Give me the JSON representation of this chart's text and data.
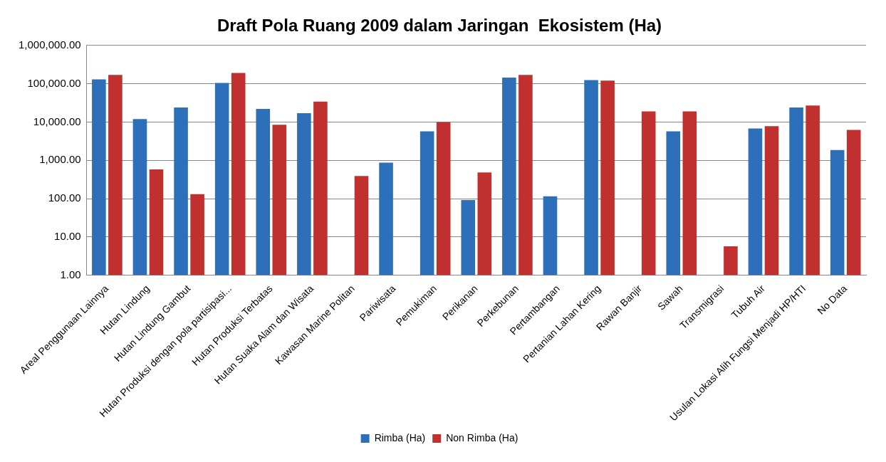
{
  "chart_data": {
    "type": "bar",
    "title": "Draft Pola Ruang 2009 dalam Jaringan  Ekosistem (Ha)",
    "categories": [
      "Areal Penggunaan Lainnya",
      "Hutan Lindung",
      "Hutan Lindung Gambut",
      "Hutan Produksi dengan pola partisipasi...",
      "Hutan Produksi Terbatas",
      "Hutan Suaka Alam dan Wisata",
      "Kawasan Marine Politan",
      "Pariwisata",
      "Pemukiman",
      "Perikanan",
      "Perkebunan",
      "Pertambangan",
      "Pertanian Lahan Kering",
      "Rawan Banjir",
      "Sawah",
      "Transmigrasi",
      "Tubuh Air",
      "Usulan Lokasi Alih Fungsi Menjadi HP/HTI",
      "No Data"
    ],
    "series": [
      {
        "name": "Rimba (Ha)",
        "color": "#2e6fba",
        "values": [
          130000,
          12000,
          24000,
          105000,
          22000,
          17000,
          null,
          870,
          5700,
          92,
          145000,
          115,
          125000,
          null,
          5700,
          null,
          6800,
          24000,
          1850
        ]
      },
      {
        "name": "Non Rimba (Ha)",
        "color": "#c0302e",
        "values": [
          170000,
          580,
          130,
          190000,
          8500,
          34000,
          390,
          null,
          10000,
          480,
          170000,
          null,
          120000,
          19000,
          19000,
          5.7,
          7800,
          27000,
          6200
        ]
      }
    ],
    "log": "y",
    "ylim": [
      1,
      1000000
    ],
    "yticks": [
      {
        "value": 1,
        "label": "1.00"
      },
      {
        "value": 10,
        "label": "10.00"
      },
      {
        "value": 100,
        "label": "100.00"
      },
      {
        "value": 1000,
        "label": "1,000.00"
      },
      {
        "value": 10000,
        "label": "10,000.00"
      },
      {
        "value": 100000,
        "label": "100,000.00"
      },
      {
        "value": 1000000,
        "label": "1,000,000.00"
      }
    ],
    "grid": "y",
    "legend": "bottom"
  }
}
